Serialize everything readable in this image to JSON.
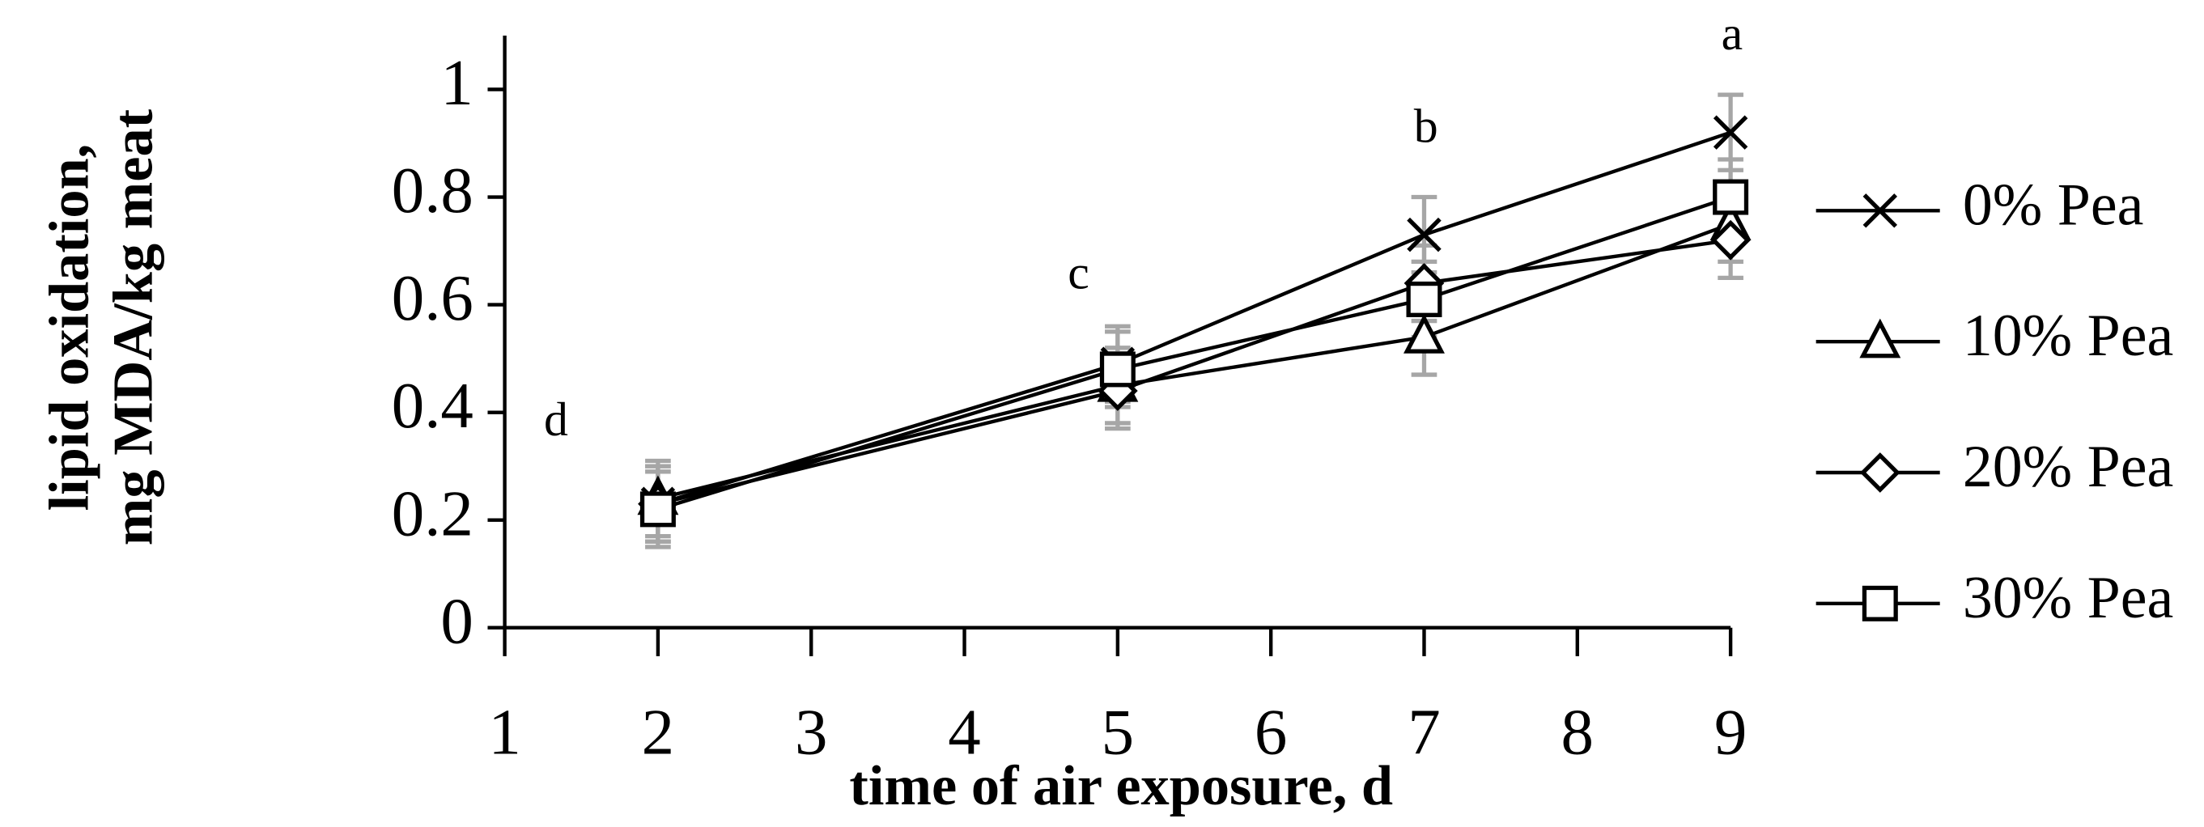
{
  "chart_data": {
    "type": "line",
    "x_label": "time of air exposure, d",
    "y_label": [
      "lipid oxidation,",
      "mg MDA/kg meat"
    ],
    "x": [
      2,
      5,
      7,
      9
    ],
    "xlim": [
      1,
      9
    ],
    "xticks": [
      1,
      2,
      3,
      4,
      5,
      6,
      7,
      8,
      9
    ],
    "ylim": [
      0,
      1.1
    ],
    "yticks": [
      0,
      0.2,
      0.4,
      0.6,
      0.8,
      1
    ],
    "line_color": "#000000",
    "error_color": "#a6a6a6",
    "series": [
      {
        "name": "0% Pea",
        "marker": "x",
        "values": [
          0.23,
          0.49,
          0.73,
          0.92
        ],
        "errors": [
          0.07,
          0.07,
          0.07,
          0.07
        ]
      },
      {
        "name": "10% Pea",
        "marker": "triangle",
        "values": [
          0.24,
          0.45,
          0.54,
          0.75
        ],
        "errors": [
          0.07,
          0.07,
          0.07,
          0.07
        ]
      },
      {
        "name": "20% Pea",
        "marker": "diamond",
        "values": [
          0.23,
          0.44,
          0.64,
          0.72
        ],
        "errors": [
          0.07,
          0.07,
          0.07,
          0.07
        ]
      },
      {
        "name": "30% Pea",
        "marker": "square",
        "values": [
          0.22,
          0.48,
          0.61,
          0.8
        ],
        "errors": [
          0.07,
          0.07,
          0.07,
          0.07
        ]
      }
    ],
    "annotations": [
      "d",
      "c",
      "b",
      "a"
    ]
  }
}
